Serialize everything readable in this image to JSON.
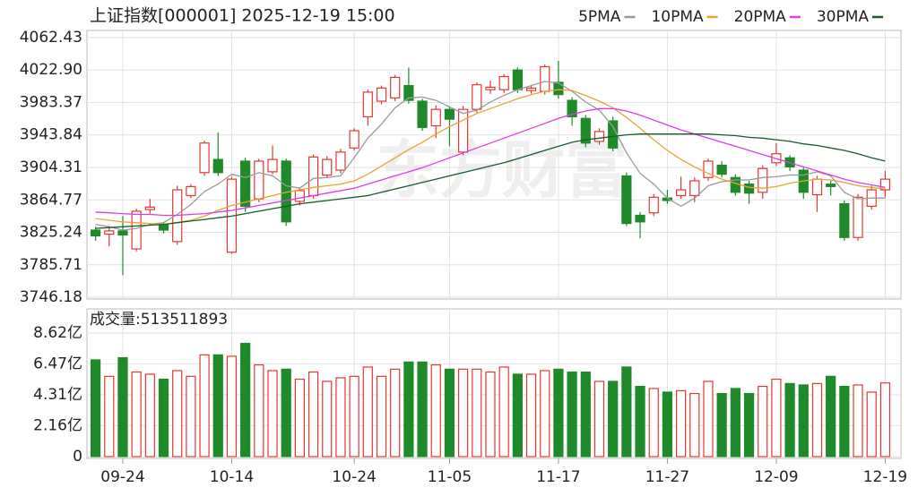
{
  "chart_data": [
    {
      "type": "candlestick",
      "title": "上证指数[000001] 2025-12-19 15:00",
      "watermark": "东方财富",
      "categories": [
        null,
        null,
        "09-24",
        null,
        null,
        null,
        null,
        null,
        null,
        null,
        "10-14",
        null,
        null,
        null,
        null,
        null,
        null,
        null,
        null,
        "10-24",
        null,
        null,
        null,
        null,
        null,
        null,
        "11-05",
        null,
        null,
        null,
        null,
        null,
        null,
        null,
        "11-17",
        null,
        null,
        null,
        null,
        null,
        null,
        null,
        "11-27",
        null,
        null,
        null,
        null,
        null,
        null,
        null,
        "12-09",
        null,
        null,
        null,
        null,
        null,
        null,
        null,
        "12-19"
      ],
      "open": [
        3828,
        3823,
        3827,
        3805,
        3853,
        3835,
        3814,
        3870,
        3898,
        3914,
        3801,
        3912,
        3866,
        3899,
        3912,
        3863,
        3870,
        3895,
        3901,
        3928,
        3966,
        3985,
        3989,
        4004,
        3985,
        3955,
        3975,
        3923,
        3975,
        3999,
        3999,
        4023,
        3998,
        3997,
        4008,
        3986,
        3964,
        3936,
        3961,
        3894,
        3846,
        3849,
        3867,
        3870,
        3870,
        3892,
        3907,
        3892,
        3884,
        3874,
        3910,
        3916,
        3901,
        3871,
        3884,
        3860,
        3819,
        3857,
        3877
      ],
      "high": [
        3832,
        3833,
        3845,
        3854,
        3866,
        3838,
        3882,
        3884,
        3937,
        3947,
        3893,
        3916,
        3915,
        3931,
        3915,
        3880,
        3920,
        3918,
        3927,
        3952,
        3999,
        4004,
        4017,
        4026,
        3988,
        3980,
        3979,
        3979,
        4008,
        4010,
        4018,
        4026,
        4005,
        4030,
        4034,
        3990,
        3968,
        3952,
        3966,
        3898,
        3850,
        3872,
        3877,
        3893,
        3892,
        3915,
        3912,
        3896,
        3888,
        3907,
        3934,
        3919,
        3904,
        3894,
        3888,
        3864,
        3872,
        3882,
        3900
      ],
      "low": [
        3815,
        3808,
        3773,
        3802,
        3848,
        3824,
        3810,
        3867,
        3894,
        3894,
        3799,
        3850,
        3862,
        3896,
        3833,
        3858,
        3866,
        3891,
        3897,
        3925,
        3955,
        3981,
        3985,
        3982,
        3949,
        3940,
        3930,
        3919,
        3971,
        3994,
        3995,
        3995,
        3994,
        3993,
        3988,
        3955,
        3929,
        3932,
        3924,
        3833,
        3818,
        3845,
        3860,
        3866,
        3862,
        3888,
        3892,
        3870,
        3860,
        3866,
        3906,
        3900,
        3866,
        3850,
        3870,
        3815,
        3815,
        3853,
        3868
      ],
      "close": [
        3821,
        3827,
        3822,
        3851,
        3856,
        3828,
        3877,
        3881,
        3934,
        3898,
        3890,
        3857,
        3912,
        3914,
        3838,
        3876,
        3917,
        3914,
        3923,
        3949,
        3996,
        4001,
        4014,
        3986,
        3953,
        3975,
        3963,
        3975,
        4005,
        4002,
        4015,
        3999,
        4001,
        4027,
        3993,
        3966,
        3934,
        3948,
        3928,
        3836,
        3838,
        3868,
        3864,
        3877,
        3888,
        3912,
        3896,
        3874,
        3873,
        3903,
        3921,
        3905,
        3874,
        3890,
        3881,
        3819,
        3868,
        3877,
        3890
      ],
      "up_color": "#e8362f",
      "down_color": "#1f8a2a",
      "series": [
        {
          "name": "5PMA",
          "color": "#9a9a9a",
          "values": [
            3835,
            3832,
            3828,
            3830,
            3835,
            3837,
            3847,
            3859,
            3875,
            3884,
            3896,
            3892,
            3898,
            3894,
            3882,
            3879,
            3891,
            3892,
            3894,
            3916,
            3940,
            3957,
            3977,
            3989,
            3990,
            3986,
            3978,
            3970,
            3974,
            3984,
            3992,
            3999,
            4004,
            4009,
            4007,
            3997,
            3984,
            3974,
            3954,
            3922,
            3897,
            3884,
            3867,
            3857,
            3867,
            3882,
            3887,
            3889,
            3889,
            3892,
            3893,
            3895,
            3895,
            3899,
            3894,
            3874,
            3866,
            3867,
            3867
          ]
        },
        {
          "name": "10PMA",
          "color": "#e9a32f",
          "values": [
            3842,
            3840,
            3838,
            3837,
            3836,
            3835,
            3837,
            3840,
            3845,
            3852,
            3858,
            3862,
            3866,
            3870,
            3874,
            3877,
            3880,
            3882,
            3884,
            3888,
            3896,
            3906,
            3916,
            3926,
            3935,
            3945,
            3954,
            3962,
            3970,
            3976,
            3982,
            3988,
            3993,
            3997,
            3999,
            3998,
            3992,
            3985,
            3977,
            3965,
            3952,
            3938,
            3925,
            3914,
            3905,
            3897,
            3890,
            3885,
            3880,
            3879,
            3881,
            3885,
            3888,
            3890,
            3889,
            3886,
            3882,
            3880,
            3878
          ]
        },
        {
          "name": "20PMA",
          "color": "#e03ce0",
          "values": [
            3850,
            3849,
            3848,
            3847,
            3847,
            3846,
            3846,
            3847,
            3848,
            3850,
            3852,
            3855,
            3858,
            3861,
            3864,
            3867,
            3870,
            3873,
            3876,
            3879,
            3884,
            3889,
            3894,
            3899,
            3904,
            3910,
            3916,
            3922,
            3928,
            3934,
            3940,
            3946,
            3952,
            3958,
            3964,
            3969,
            3973,
            3976,
            3976,
            3973,
            3968,
            3962,
            3956,
            3950,
            3945,
            3940,
            3935,
            3930,
            3925,
            3920,
            3915,
            3910,
            3905,
            3900,
            3895,
            3890,
            3886,
            3883,
            3880
          ]
        },
        {
          "name": "30PMA",
          "color": "#145c2c",
          "values": [
            3830,
            3831,
            3832,
            3833,
            3834,
            3835,
            3837,
            3839,
            3841,
            3843,
            3845,
            3848,
            3851,
            3854,
            3857,
            3860,
            3862,
            3864,
            3866,
            3868,
            3870,
            3874,
            3878,
            3882,
            3886,
            3890,
            3894,
            3898,
            3902,
            3906,
            3910,
            3915,
            3920,
            3925,
            3930,
            3935,
            3938,
            3940,
            3942,
            3944,
            3945,
            3945,
            3945,
            3945,
            3945,
            3945,
            3944,
            3943,
            3941,
            3940,
            3938,
            3936,
            3933,
            3931,
            3928,
            3925,
            3921,
            3916,
            3912
          ]
        }
      ],
      "ylim": [
        3746.18,
        4062.43
      ],
      "yticks": [
        4062.43,
        {
          "value": 4022.9,
          "label": "4022.90"
        },
        3983.37,
        3943.84,
        3904.31,
        3864.77,
        3825.24,
        3785.71,
        3746.18
      ],
      "grid": true
    },
    {
      "type": "bar",
      "title": "成交量:513511893",
      "values": [
        6.75,
        5.6,
        6.9,
        5.9,
        5.75,
        5.4,
        6.0,
        5.6,
        7.1,
        7.1,
        7.0,
        7.9,
        6.4,
        6.0,
        6.1,
        5.4,
        5.9,
        5.25,
        5.5,
        5.6,
        6.25,
        5.6,
        6.1,
        6.6,
        6.6,
        6.4,
        6.1,
        6.1,
        6.1,
        5.9,
        6.25,
        5.75,
        5.75,
        6.0,
        6.1,
        5.9,
        5.9,
        5.25,
        5.25,
        6.25,
        4.9,
        4.75,
        4.5,
        4.6,
        4.4,
        5.25,
        4.4,
        4.75,
        4.4,
        4.9,
        5.4,
        5.1,
        5.0,
        5.1,
        5.6,
        4.9,
        5.0,
        4.5,
        5.14
      ],
      "ylim": [
        0,
        8.62
      ],
      "yticks": [
        {
          "value": 8.62,
          "label": "8.62亿"
        },
        {
          "value": 6.47,
          "label": "6.47亿"
        },
        {
          "value": 4.31,
          "label": "4.31亿"
        },
        {
          "value": 2.16,
          "label": "2.16亿"
        },
        0
      ],
      "grid": true
    }
  ]
}
